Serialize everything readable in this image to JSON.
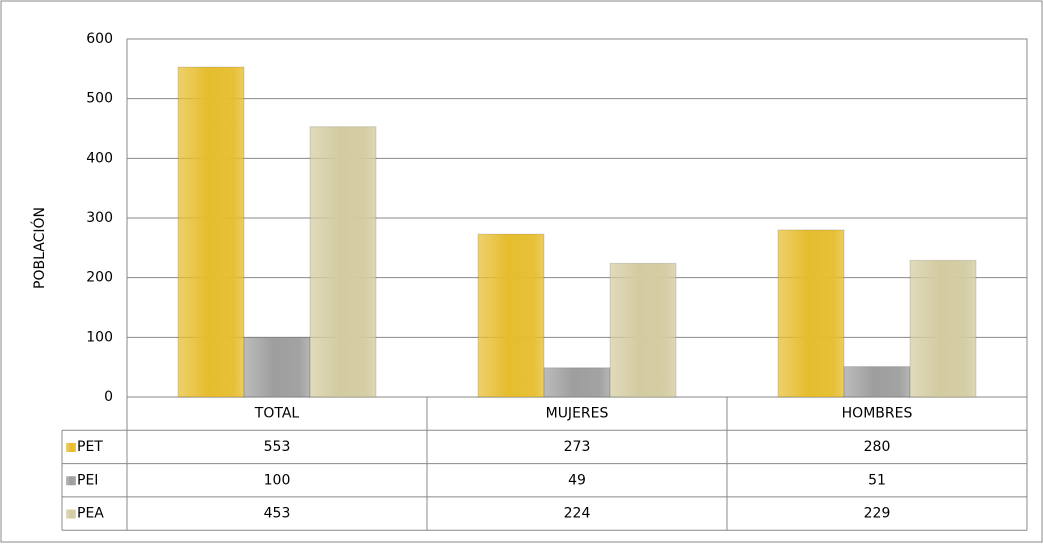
{
  "chart_data": {
    "type": "bar",
    "y_label": "POBLACIÓN",
    "categories": [
      "TOTAL",
      "MUJERES",
      "HOMBRES"
    ],
    "series": [
      {
        "name": "PET",
        "color": "#e6bd2e",
        "values": [
          553,
          273,
          280
        ]
      },
      {
        "name": "PEI",
        "color": "#9e9e9e",
        "values": [
          100,
          49,
          51
        ]
      },
      {
        "name": "PEA",
        "color": "#d3cba0",
        "values": [
          453,
          224,
          229
        ]
      }
    ],
    "ylim": [
      0,
      600
    ],
    "yticks": [
      0,
      100,
      200,
      300,
      400,
      500,
      600
    ],
    "grid": true,
    "data_table": true
  }
}
